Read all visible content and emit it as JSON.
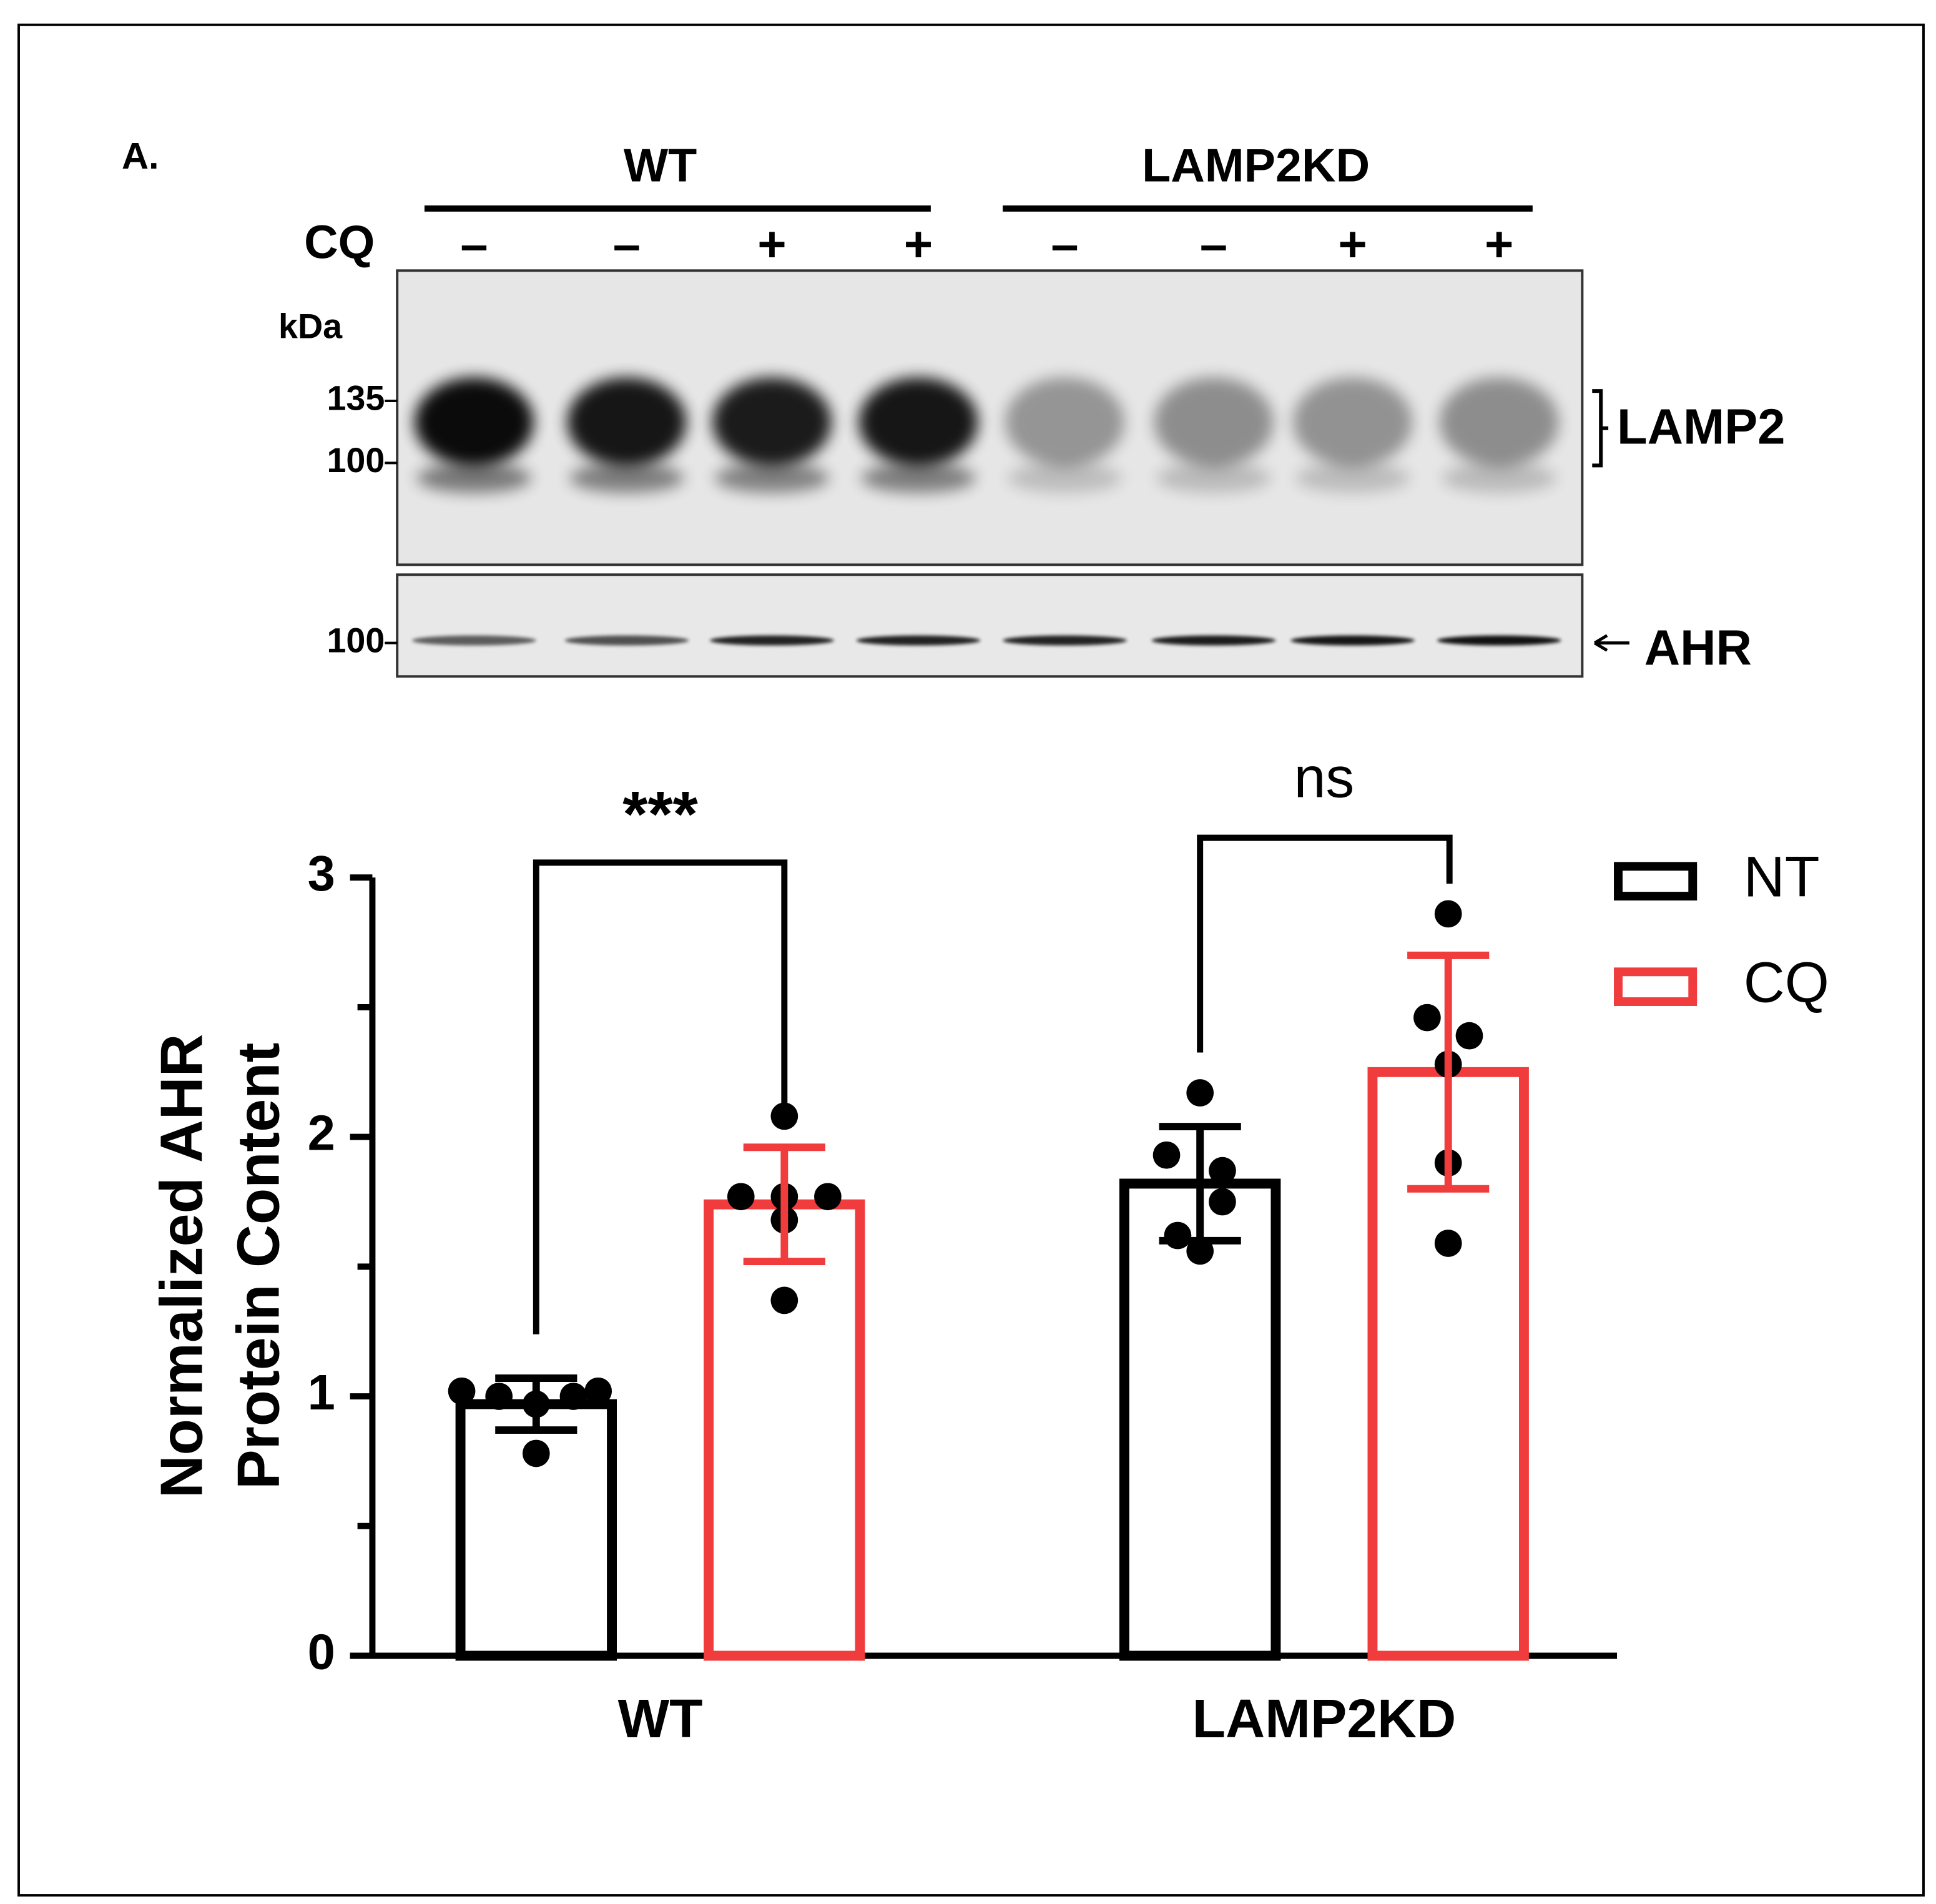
{
  "blot": {
    "panel_label": "A.",
    "groups": [
      "WT",
      "LAMP2KD"
    ],
    "treatment_label": "CQ",
    "lanes": [
      "–",
      "–",
      "+",
      "+",
      "–",
      "–",
      "+",
      "+"
    ],
    "kda_label": "kDa",
    "markers": [
      135,
      100
    ],
    "ahr_marker": 100,
    "band_labels": [
      "LAMP2",
      "AHR"
    ]
  },
  "chart_data": {
    "type": "bar",
    "y_label": [
      "Normalized AHR",
      "Protein Content"
    ],
    "categories": [
      "WT",
      "LAMP2KD"
    ],
    "series": [
      {
        "name": "NT",
        "color": "#000000",
        "values": [
          0.97,
          1.82
        ],
        "errors": [
          0.1,
          0.22
        ],
        "points": [
          [
            1.02,
            1.0,
            0.97,
            1.0,
            1.02,
            0.78
          ],
          [
            2.17,
            1.93,
            1.87,
            1.75,
            1.62,
            1.56
          ]
        ]
      },
      {
        "name": "CQ",
        "color": "#f03c3c",
        "values": [
          1.74,
          2.25
        ],
        "errors": [
          0.22,
          0.45
        ],
        "points": [
          [
            2.08,
            1.77,
            1.77,
            1.77,
            1.68,
            1.37
          ],
          [
            2.86,
            2.46,
            2.39,
            2.28,
            1.9,
            1.59
          ]
        ]
      }
    ],
    "annotations": [
      "***",
      "ns"
    ],
    "ylim": [
      0,
      3
    ],
    "yticks": [
      0,
      1,
      2,
      3
    ],
    "yminor_ticks": [
      0.5,
      1.5,
      2.5
    ]
  }
}
